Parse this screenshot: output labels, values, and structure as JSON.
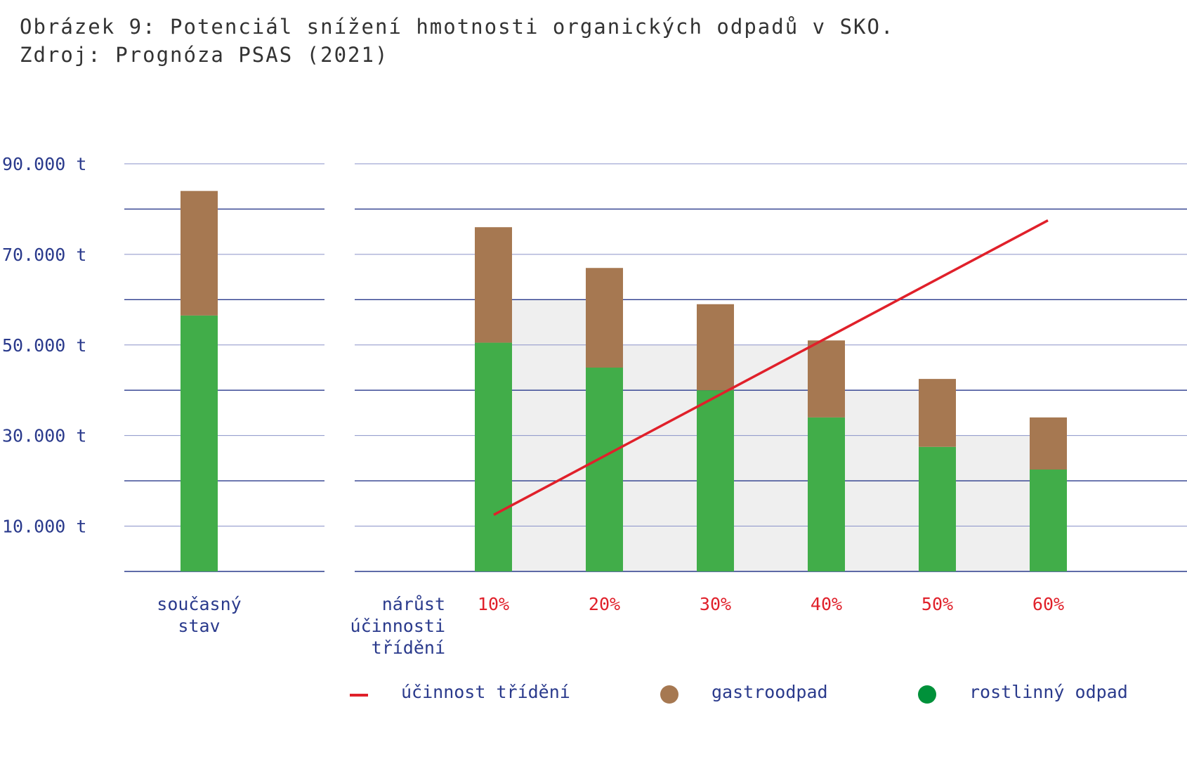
{
  "caption": {
    "line1": "Obrázek 9: Potenciál snížení hmotnosti organických odpadů v SKO.",
    "line2": "Zdroj: Prognóza PSAS (2021)"
  },
  "colors": {
    "gastro": "#a67851",
    "rostlinny": "#41ad49",
    "line": "#e0202a",
    "grid": "#2a3a8c",
    "shade": "#efefef",
    "text": "#2a3a8c"
  },
  "chart_data": {
    "type": "bar",
    "stacked": true,
    "unit": "t",
    "ylim": [
      0,
      90000
    ],
    "yticks": [
      "10.000 t",
      "30.000 t",
      "50.000 t",
      "70.000 t",
      "90.000 t"
    ],
    "ytick_values": [
      10000,
      30000,
      50000,
      70000,
      90000
    ],
    "grid": true,
    "current": {
      "label_line1": "současný",
      "label_line2": "stav",
      "rostlinny": 56500,
      "gastro": 27500
    },
    "scenario_axis_label": [
      "nárůst",
      "účinnosti",
      "třídění"
    ],
    "categories": [
      "10%",
      "20%",
      "30%",
      "40%",
      "50%",
      "60%"
    ],
    "series": [
      {
        "name": "rostlinný odpad",
        "values": [
          50500,
          45000,
          40000,
          34000,
          27500,
          22500
        ]
      },
      {
        "name": "gastroodpad",
        "values": [
          25500,
          22000,
          19000,
          17000,
          15000,
          11500
        ]
      }
    ],
    "line_series": {
      "name": "účinnost třídění",
      "start_y": 12500,
      "end_y": 77500
    },
    "legend": {
      "position": "bottom",
      "items": [
        {
          "label": "účinnost třídění",
          "kind": "line"
        },
        {
          "label": "gastroodpad",
          "kind": "dot-gastro"
        },
        {
          "label": "rostlinný odpad",
          "kind": "dot-rostlinny"
        }
      ]
    }
  }
}
